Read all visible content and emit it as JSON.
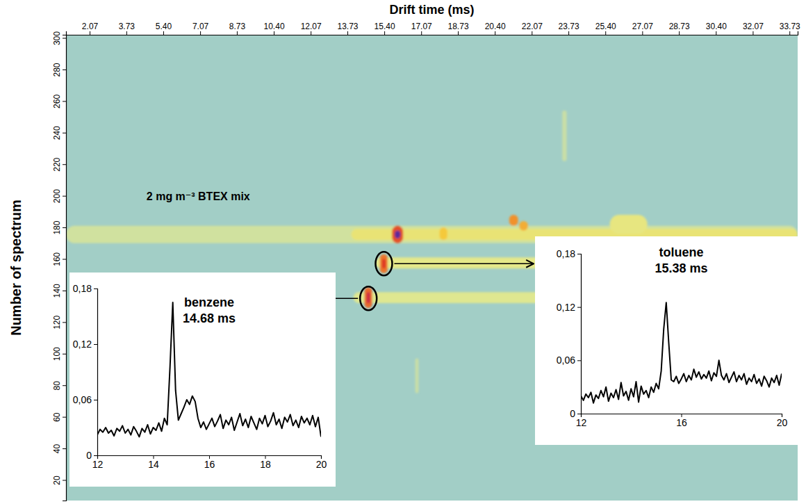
{
  "chart_data": [
    {
      "type": "heatmap",
      "xlabel": "Drift time (ms)",
      "ylabel": "Number of spectrum",
      "xlim": [
        1.0,
        34.1
      ],
      "ylim": [
        7,
        302
      ],
      "xticks": [
        2.07,
        3.73,
        {
          "value": 5.4,
          "label": "5.40"
        },
        7.07,
        8.73,
        {
          "value": 10.4,
          "label": "10.40"
        },
        12.07,
        13.73,
        {
          "value": 15.4,
          "label": "15.40"
        },
        17.07,
        18.73,
        {
          "value": 20.4,
          "label": "20.40"
        },
        22.07,
        23.73,
        {
          "value": 25.4,
          "label": "25.40"
        },
        27.07,
        28.73,
        {
          "value": 30.4,
          "label": "30.40"
        },
        32.07,
        33.73
      ],
      "yticks": [
        20,
        40,
        60,
        80,
        100,
        120,
        140,
        160,
        180,
        200,
        220,
        240,
        260,
        280,
        300
      ],
      "zlim": [
        0,
        0.18
      ],
      "annotations": [
        "2 mg m⁻³ BTEX mix"
      ],
      "cells": [
        {
          "x": [
            1.0,
            34.1
          ],
          "y": [
            7,
            302
          ],
          "value": 0.025
        },
        {
          "x": [
            1.0,
            34.1
          ],
          "y": [
            170,
            181
          ],
          "value": 0.045
        },
        {
          "x": [
            13.9,
            34.1
          ],
          "y": [
            172,
            179
          ],
          "value": 0.062
        },
        {
          "x": [
            25.6,
            27.3
          ],
          "y": [
            176,
            188
          ],
          "value": 0.058
        },
        {
          "x": [
            15.0,
            34.1
          ],
          "y": [
            154,
            161
          ],
          "value": 0.055
        },
        {
          "x": [
            14.0,
            25.0
          ],
          "y": [
            132,
            139
          ],
          "value": 0.052
        },
        {
          "x": [
            23.45,
            23.65
          ],
          "y": [
            222,
            254
          ],
          "value": 0.042
        },
        {
          "x": [
            16.8,
            16.95
          ],
          "y": [
            75,
            97
          ],
          "value": 0.042
        },
        {
          "x": [
            17.9,
            18.25
          ],
          "y": [
            172,
            180
          ],
          "value": 0.085
        },
        {
          "x": [
            21.05,
            21.45
          ],
          "y": [
            181,
            188
          ],
          "value": 0.105
        },
        {
          "x": [
            21.5,
            21.9
          ],
          "y": [
            178,
            184
          ],
          "value": 0.095
        },
        {
          "x": [
            15.75,
            16.25
          ],
          "y": [
            170,
            181
          ],
          "value": 0.13
        },
        {
          "x": [
            15.87,
            16.13
          ],
          "y": [
            173,
            178
          ],
          "value": 0.18
        },
        {
          "x": [
            15.2,
            15.55
          ],
          "y": [
            151,
            163
          ],
          "value": 0.115
        },
        {
          "x": [
            15.3,
            15.46
          ],
          "y": [
            154,
            160
          ],
          "value": 0.14
        },
        {
          "x": [
            14.5,
            14.85
          ],
          "y": [
            129,
            142
          ],
          "value": 0.12
        },
        {
          "x": [
            14.6,
            14.76
          ],
          "y": [
            132,
            139
          ],
          "value": 0.15
        }
      ]
    },
    {
      "type": "line",
      "title": "benzene",
      "subtitle": "14.68 ms",
      "peak": {
        "drift_time": 14.68,
        "spectrum": 135
      },
      "color": "#000000",
      "xlim": [
        12,
        20
      ],
      "ylim": [
        0,
        0.18
      ],
      "xticks": [
        12,
        14,
        16,
        18,
        20
      ],
      "yticks": [
        0,
        {
          "value": 0.06,
          "label": "0,06"
        },
        {
          "value": 0.12,
          "label": "0,12"
        },
        {
          "value": 0.18,
          "label": "0,18"
        }
      ],
      "x": [
        12.0,
        12.1,
        12.2,
        12.3,
        12.4,
        12.5,
        12.6,
        12.7,
        12.8,
        12.9,
        13.0,
        13.1,
        13.2,
        13.3,
        13.4,
        13.5,
        13.6,
        13.7,
        13.8,
        13.9,
        14.0,
        14.1,
        14.2,
        14.3,
        14.4,
        14.5,
        14.6,
        14.7,
        14.8,
        14.9,
        15.0,
        15.1,
        15.2,
        15.3,
        15.4,
        15.5,
        15.6,
        15.7,
        15.8,
        15.9,
        16.0,
        16.1,
        16.2,
        16.3,
        16.4,
        16.5,
        16.6,
        16.7,
        16.8,
        16.9,
        17.0,
        17.1,
        17.2,
        17.3,
        17.4,
        17.5,
        17.6,
        17.7,
        17.8,
        17.9,
        18.0,
        18.1,
        18.2,
        18.3,
        18.4,
        18.5,
        18.6,
        18.7,
        18.8,
        18.9,
        19.0,
        19.1,
        19.2,
        19.3,
        19.4,
        19.5,
        19.6,
        19.7,
        19.8,
        19.9,
        20.0
      ],
      "values": [
        0.022,
        0.028,
        0.025,
        0.03,
        0.024,
        0.027,
        0.021,
        0.029,
        0.026,
        0.032,
        0.024,
        0.028,
        0.022,
        0.031,
        0.026,
        0.02,
        0.029,
        0.025,
        0.033,
        0.023,
        0.03,
        0.027,
        0.035,
        0.026,
        0.04,
        0.033,
        0.095,
        0.165,
        0.07,
        0.038,
        0.045,
        0.052,
        0.06,
        0.055,
        0.064,
        0.058,
        0.04,
        0.03,
        0.036,
        0.028,
        0.034,
        0.04,
        0.031,
        0.037,
        0.044,
        0.029,
        0.038,
        0.033,
        0.041,
        0.027,
        0.036,
        0.045,
        0.032,
        0.039,
        0.03,
        0.042,
        0.035,
        0.028,
        0.04,
        0.034,
        0.043,
        0.031,
        0.037,
        0.046,
        0.033,
        0.039,
        0.029,
        0.041,
        0.036,
        0.044,
        0.032,
        0.038,
        0.03,
        0.042,
        0.035,
        0.04,
        0.033,
        0.043,
        0.031,
        0.041,
        0.02
      ]
    },
    {
      "type": "line",
      "title": "toluene",
      "subtitle": "15.38 ms",
      "peak": {
        "drift_time": 15.38,
        "spectrum": 157
      },
      "color": "#000000",
      "xlim": [
        12,
        20
      ],
      "ylim": [
        0,
        0.18
      ],
      "xticks": [
        12,
        16,
        20
      ],
      "yticks": [
        0,
        {
          "value": 0.06,
          "label": "0,06"
        },
        {
          "value": 0.12,
          "label": "0,12"
        },
        {
          "value": 0.18,
          "label": "0,18"
        }
      ],
      "x": [
        12.0,
        12.1,
        12.2,
        12.3,
        12.4,
        12.5,
        12.6,
        12.7,
        12.8,
        12.9,
        13.0,
        13.1,
        13.2,
        13.3,
        13.4,
        13.5,
        13.6,
        13.7,
        13.8,
        13.9,
        14.0,
        14.1,
        14.2,
        14.3,
        14.4,
        14.5,
        14.6,
        14.7,
        14.8,
        14.9,
        15.0,
        15.1,
        15.2,
        15.3,
        15.4,
        15.5,
        15.6,
        15.7,
        15.8,
        15.9,
        16.0,
        16.1,
        16.2,
        16.3,
        16.4,
        16.5,
        16.6,
        16.7,
        16.8,
        16.9,
        17.0,
        17.1,
        17.2,
        17.3,
        17.4,
        17.5,
        17.6,
        17.7,
        17.8,
        17.9,
        18.0,
        18.1,
        18.2,
        18.3,
        18.4,
        18.5,
        18.6,
        18.7,
        18.8,
        18.9,
        19.0,
        19.1,
        19.2,
        19.3,
        19.4,
        19.5,
        19.6,
        19.7,
        19.8,
        19.9,
        20.0
      ],
      "values": [
        0.02,
        0.015,
        0.022,
        0.018,
        0.024,
        0.012,
        0.021,
        0.017,
        0.026,
        0.019,
        0.03,
        0.014,
        0.023,
        0.018,
        0.027,
        0.016,
        0.035,
        0.02,
        0.025,
        0.015,
        0.028,
        0.019,
        0.036,
        0.013,
        0.031,
        0.022,
        0.026,
        0.018,
        0.03,
        0.024,
        0.034,
        0.028,
        0.048,
        0.095,
        0.125,
        0.08,
        0.038,
        0.036,
        0.042,
        0.034,
        0.039,
        0.045,
        0.036,
        0.043,
        0.038,
        0.05,
        0.041,
        0.047,
        0.039,
        0.044,
        0.04,
        0.048,
        0.037,
        0.046,
        0.042,
        0.06,
        0.043,
        0.038,
        0.045,
        0.035,
        0.041,
        0.047,
        0.036,
        0.043,
        0.038,
        0.045,
        0.033,
        0.04,
        0.036,
        0.044,
        0.034,
        0.039,
        0.031,
        0.042,
        0.037,
        0.03,
        0.04,
        0.035,
        0.043,
        0.032,
        0.045
      ]
    }
  ]
}
